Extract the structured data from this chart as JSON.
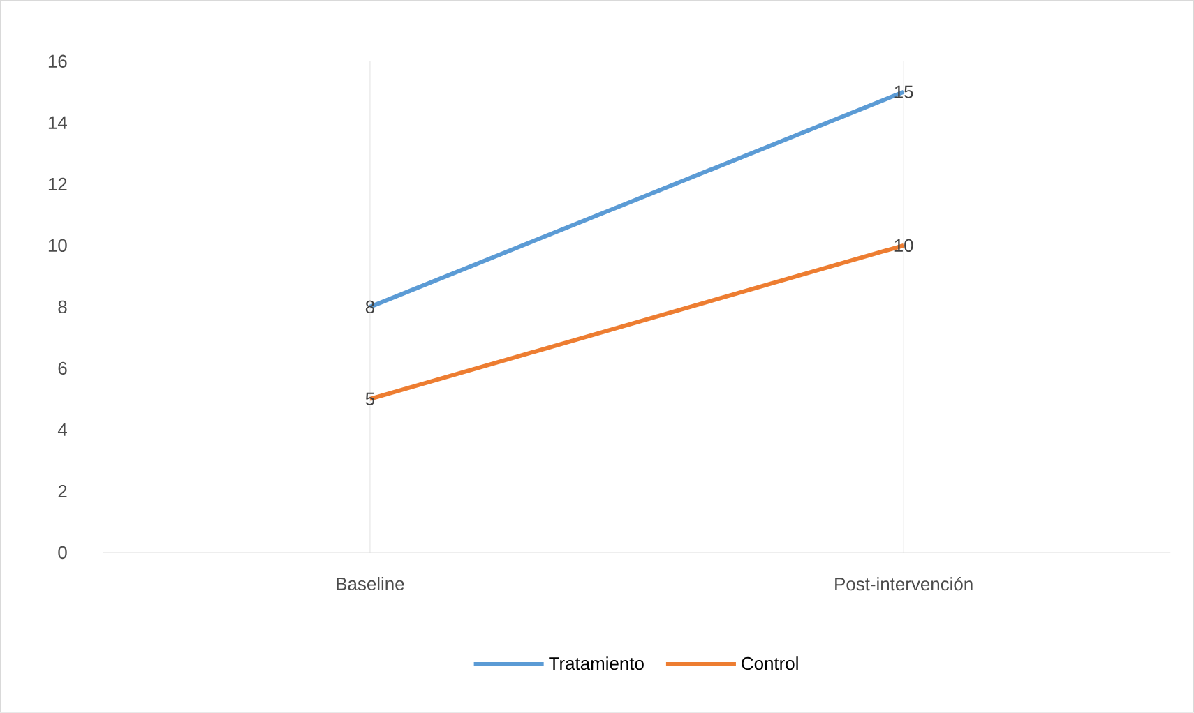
{
  "chart_data": {
    "type": "line",
    "categories": [
      "Baseline",
      "Post-intervención"
    ],
    "series": [
      {
        "name": "Tratamiento",
        "color": "#5b9bd5",
        "values": [
          8,
          15
        ]
      },
      {
        "name": "Control",
        "color": "#ed7d31",
        "values": [
          5,
          10
        ]
      }
    ],
    "ylim": [
      0,
      16
    ],
    "yticks": [
      0,
      2,
      4,
      6,
      8,
      10,
      12,
      14,
      16
    ],
    "grid": "x",
    "legend": "bottom",
    "data_labels": true,
    "marker": "none",
    "line_style": "solid"
  }
}
